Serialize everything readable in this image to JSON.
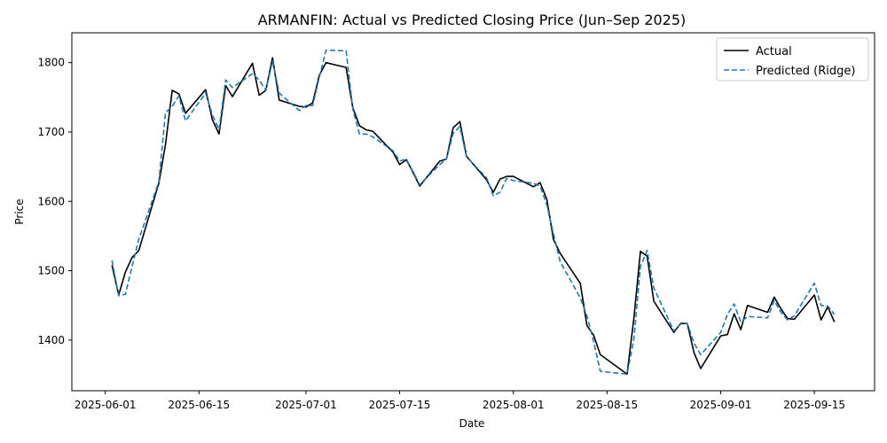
{
  "chart_data": {
    "type": "line",
    "title": "ARMANFIN: Actual vs Predicted Closing Price (Jun–Sep 2025)",
    "xlabel": "Date",
    "ylabel": "Price",
    "xlim": [
      "2025-05-27",
      "2025-09-24"
    ],
    "ylim": [
      1327,
      1843
    ],
    "x_ticks": [
      "2025-06-01",
      "2025-06-15",
      "2025-07-01",
      "2025-07-15",
      "2025-08-01",
      "2025-08-15",
      "2025-09-01",
      "2025-09-15"
    ],
    "y_ticks": [
      1400,
      1500,
      1600,
      1700,
      1800
    ],
    "grid": false,
    "legend_position": "top-right",
    "x": [
      "2025-06-02",
      "2025-06-03",
      "2025-06-04",
      "2025-06-05",
      "2025-06-06",
      "2025-06-09",
      "2025-06-10",
      "2025-06-11",
      "2025-06-12",
      "2025-06-13",
      "2025-06-16",
      "2025-06-17",
      "2025-06-18",
      "2025-06-19",
      "2025-06-20",
      "2025-06-23",
      "2025-06-24",
      "2025-06-25",
      "2025-06-26",
      "2025-06-27",
      "2025-06-30",
      "2025-07-01",
      "2025-07-02",
      "2025-07-03",
      "2025-07-04",
      "2025-07-07",
      "2025-07-08",
      "2025-07-09",
      "2025-07-10",
      "2025-07-11",
      "2025-07-14",
      "2025-07-15",
      "2025-07-16",
      "2025-07-17",
      "2025-07-18",
      "2025-07-21",
      "2025-07-22",
      "2025-07-23",
      "2025-07-24",
      "2025-07-25",
      "2025-07-28",
      "2025-07-29",
      "2025-07-30",
      "2025-07-31",
      "2025-08-01",
      "2025-08-04",
      "2025-08-05",
      "2025-08-06",
      "2025-08-07",
      "2025-08-08",
      "2025-08-11",
      "2025-08-12",
      "2025-08-13",
      "2025-08-14",
      "2025-08-18",
      "2025-08-19",
      "2025-08-20",
      "2025-08-21",
      "2025-08-22",
      "2025-08-25",
      "2025-08-26",
      "2025-08-27",
      "2025-08-28",
      "2025-08-29",
      "2025-09-01",
      "2025-09-02",
      "2025-09-03",
      "2025-09-04",
      "2025-09-05",
      "2025-09-08",
      "2025-09-09",
      "2025-09-10",
      "2025-09-11",
      "2025-09-12",
      "2025-09-15",
      "2025-09-16",
      "2025-09-17",
      "2025-09-18"
    ],
    "series": [
      {
        "name": "Actual",
        "color": "#000000",
        "style": "solid",
        "values": [
          1508,
          1465,
          1498,
          1519,
          1529,
          1626,
          1682,
          1760,
          1755,
          1727,
          1761,
          1718,
          1697,
          1767,
          1751,
          1799,
          1753,
          1760,
          1807,
          1746,
          1737,
          1736,
          1742,
          1782,
          1800,
          1793,
          1735,
          1709,
          1703,
          1701,
          1671,
          1653,
          1660,
          1642,
          1622,
          1658,
          1661,
          1706,
          1715,
          1665,
          1631,
          1613,
          1632,
          1636,
          1636,
          1621,
          1627,
          1603,
          1545,
          1525,
          1482,
          1421,
          1407,
          1379,
          1351,
          1430,
          1528,
          1521,
          1456,
          1411,
          1424,
          1424,
          1382,
          1359,
          1406,
          1408,
          1438,
          1415,
          1450,
          1440,
          1462,
          1445,
          1431,
          1430,
          1465,
          1429,
          1448,
          1426
        ]
      },
      {
        "name": "Predicted (Ridge)",
        "color": "#1f77b4",
        "style": "dashed",
        "values": [
          1515,
          1464,
          1466,
          1506,
          1545,
          1628,
          1728,
          1737,
          1752,
          1716,
          1756,
          1725,
          1703,
          1775,
          1764,
          1784,
          1775,
          1760,
          1802,
          1756,
          1731,
          1738,
          1738,
          1779,
          1818,
          1817,
          1733,
          1697,
          1697,
          1693,
          1673,
          1658,
          1661,
          1643,
          1624,
          1653,
          1661,
          1698,
          1708,
          1664,
          1634,
          1608,
          1613,
          1633,
          1630,
          1626,
          1622,
          1595,
          1553,
          1513,
          1461,
          1435,
          1398,
          1355,
          1351,
          1400,
          1506,
          1529,
          1475,
          1413,
          1423,
          1424,
          1396,
          1379,
          1411,
          1437,
          1452,
          1426,
          1434,
          1432,
          1457,
          1440,
          1429,
          1435,
          1482,
          1450,
          1449,
          1437
        ]
      }
    ]
  }
}
